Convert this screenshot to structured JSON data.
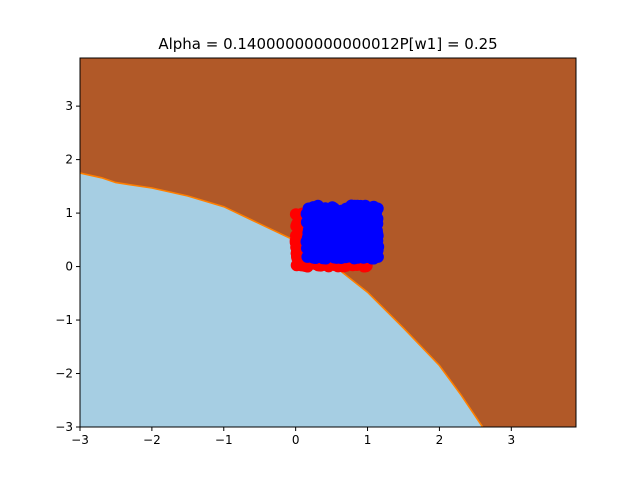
{
  "chart_data": {
    "type": "scatter",
    "title": "Alpha = 0.14000000000000012P[w1] = 0.25",
    "xlabel": "",
    "ylabel": "",
    "xlim": [
      -3,
      3.9
    ],
    "ylim": [
      -3,
      3.9
    ],
    "x_ticks": [
      -3,
      -2,
      -1,
      0,
      1,
      2,
      3
    ],
    "y_ticks": [
      -3,
      -2,
      -1,
      0,
      1,
      2,
      3
    ],
    "x_tick_labels": [
      "−3",
      "−2",
      "−1",
      "0",
      "1",
      "2",
      "3"
    ],
    "y_tick_labels": [
      "−3",
      "−2",
      "−1",
      "0",
      "1",
      "2",
      "3"
    ],
    "grid": false,
    "decision_regions": {
      "lower_region_color": "#a6cee3",
      "upper_region_color": "#b15928",
      "boundary_color": "#ff7f00",
      "boundary": [
        [
          -3.0,
          1.75
        ],
        [
          -2.7,
          1.66
        ],
        [
          -2.5,
          1.57
        ],
        [
          -2.0,
          1.47
        ],
        [
          -1.5,
          1.32
        ],
        [
          -1.0,
          1.12
        ],
        [
          -0.5,
          0.8
        ],
        [
          0.0,
          0.48
        ],
        [
          0.5,
          0.05
        ],
        [
          1.0,
          -0.48
        ],
        [
          1.5,
          -1.15
        ],
        [
          2.0,
          -1.85
        ],
        [
          2.3,
          -2.4
        ],
        [
          2.6,
          -3.0
        ]
      ]
    },
    "series": [
      {
        "color": "#ff0000",
        "region": {
          "x": [
            0.0,
            1.0
          ],
          "y": [
            0.0,
            1.0
          ]
        },
        "marker": "circle"
      },
      {
        "color": "#0000ff",
        "region": {
          "x": [
            0.15,
            1.15
          ],
          "y": [
            0.15,
            1.15
          ]
        },
        "marker": "circle"
      }
    ]
  }
}
